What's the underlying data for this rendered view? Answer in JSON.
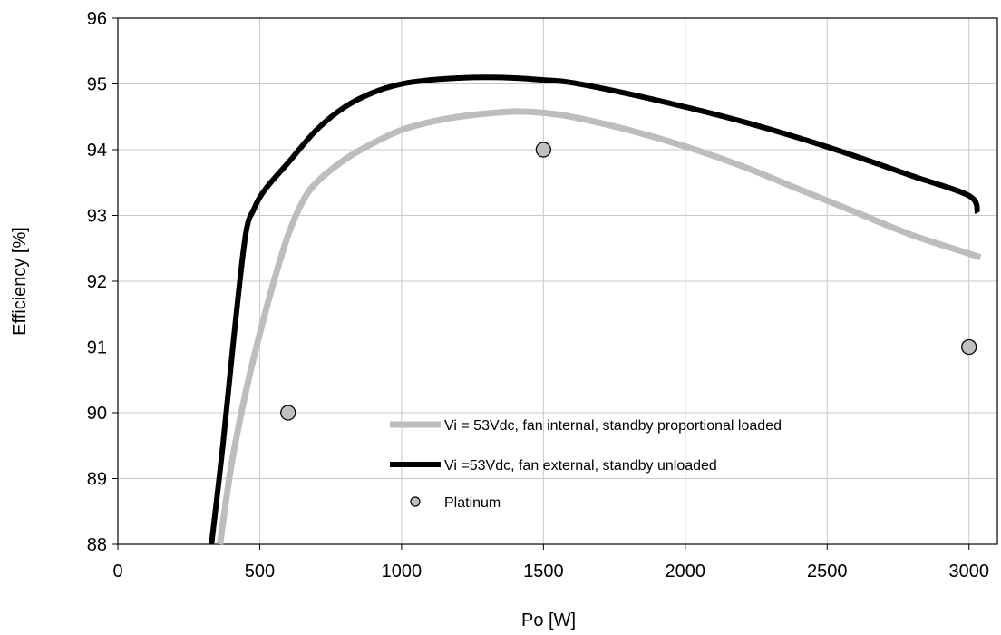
{
  "chart_data": {
    "type": "line",
    "title": "",
    "xlabel": "Po [W]",
    "ylabel": "Efficiency [%]",
    "xlim": [
      0,
      3100
    ],
    "ylim": [
      88,
      96
    ],
    "xticks": [
      0,
      500,
      1000,
      1500,
      2000,
      2500,
      3000
    ],
    "yticks": [
      88,
      89,
      90,
      91,
      92,
      93,
      94,
      95,
      96
    ],
    "xtick_labels": [
      "0",
      "500",
      "1000",
      "1500",
      "2000",
      "2500",
      "3000"
    ],
    "ytick_labels": [
      "88",
      "89",
      "90",
      "91",
      "92",
      "93",
      "94",
      "95",
      "96"
    ],
    "grid": true,
    "legend_position": "lower-center",
    "series": [
      {
        "name": "Vi = 53Vdc, fan internal, standby proportional loaded",
        "kind": "line",
        "color": "#bdbdbd",
        "x": [
          360,
          400,
          450,
          500,
          550,
          600,
          650,
          700,
          800,
          900,
          1000,
          1100,
          1200,
          1300,
          1400,
          1500,
          1600,
          1800,
          2000,
          2200,
          2400,
          2600,
          2800,
          3000,
          3040
        ],
        "y": [
          88.0,
          89.2,
          90.3,
          91.2,
          92.0,
          92.7,
          93.2,
          93.5,
          93.85,
          94.1,
          94.3,
          94.42,
          94.5,
          94.55,
          94.58,
          94.56,
          94.5,
          94.3,
          94.05,
          93.75,
          93.4,
          93.05,
          92.7,
          92.42,
          92.36
        ]
      },
      {
        "name": "Vi =53Vdc, fan external, standby unloaded",
        "kind": "line",
        "color": "#000000",
        "x": [
          330,
          370,
          410,
          450,
          480,
          520,
          600,
          700,
          800,
          900,
          1000,
          1100,
          1200,
          1300,
          1400,
          1500,
          1600,
          1800,
          2000,
          2200,
          2400,
          2600,
          2800,
          3000,
          3030
        ],
        "y": [
          88.0,
          89.5,
          91.2,
          92.7,
          93.1,
          93.4,
          93.8,
          94.3,
          94.65,
          94.87,
          95.0,
          95.06,
          95.09,
          95.1,
          95.09,
          95.06,
          95.02,
          94.85,
          94.65,
          94.43,
          94.18,
          93.9,
          93.6,
          93.3,
          93.04
        ]
      },
      {
        "name": "Platinum",
        "kind": "scatter",
        "color": "#c0c0c0",
        "x": [
          600,
          1500,
          3000
        ],
        "y": [
          90,
          94,
          91
        ]
      }
    ]
  }
}
